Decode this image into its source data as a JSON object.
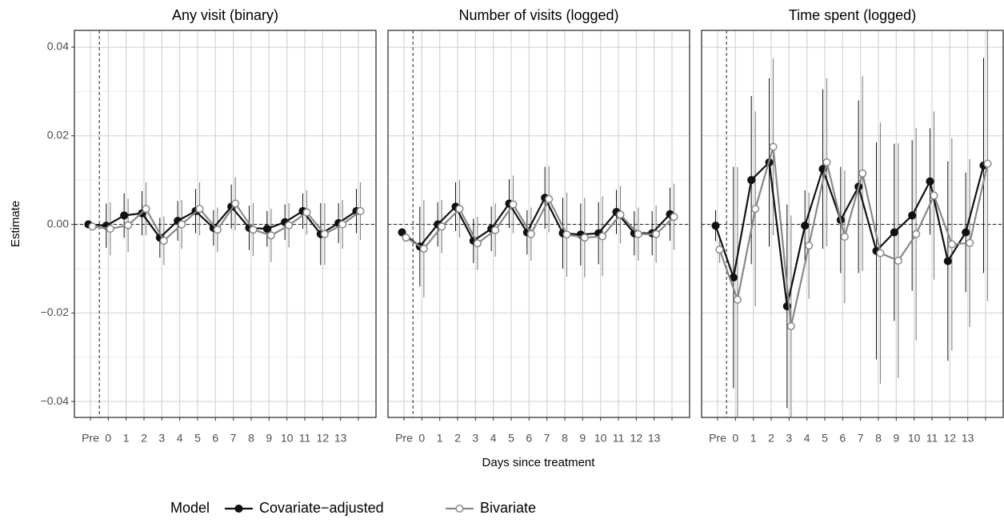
{
  "x_label": "Days since treatment",
  "y_label": "Estimate",
  "legend_title": "Model",
  "chart_data": [
    {
      "type": "line",
      "title": "Any visit (binary)",
      "categories": [
        "Pre",
        "0",
        "1",
        "2",
        "3",
        "4",
        "5",
        "6",
        "7",
        "8",
        "9",
        "10",
        "11",
        "12",
        "13",
        null
      ],
      "ylim": [
        -0.0436,
        0.0438
      ],
      "yticks": [
        {
          "value": -0.04,
          "label": "−0.04"
        },
        {
          "value": -0.02,
          "label": "−0.02"
        },
        {
          "value": 0,
          "label": "0.00"
        },
        0.02,
        0.04
      ],
      "yminor": [
        -0.03,
        -0.01,
        0.01,
        0.03
      ],
      "hline": 0,
      "grid": true,
      "series": [
        {
          "name": "Covariate−adjusted",
          "color": "#111111",
          "values": [
            0,
            -0.0003,
            0.002,
            0.0025,
            -0.003,
            0.0008,
            0.003,
            -0.0008,
            0.004,
            -0.0008,
            -0.001,
            0.0005,
            0.003,
            -0.0022,
            0.0003,
            0.003
          ],
          "errors": [
            0.0005,
            0.005,
            0.005,
            0.005,
            0.0045,
            0.0045,
            0.005,
            0.004,
            0.005,
            0.005,
            0.004,
            0.004,
            0.004,
            0.007,
            0.0045,
            0.005
          ]
        },
        {
          "name": "Bivariate",
          "color": "#888888",
          "values": [
            -0.0005,
            -0.001,
            -0.0002,
            0.0035,
            -0.0037,
            0,
            0.0035,
            -0.0012,
            0.0047,
            -0.0012,
            -0.0025,
            -0.0002,
            0.0027,
            -0.0022,
            0,
            0.003
          ],
          "errors": [
            0.0005,
            0.006,
            0.006,
            0.006,
            0.0055,
            0.0055,
            0.006,
            0.005,
            0.006,
            0.006,
            0.006,
            0.005,
            0.005,
            0.007,
            0.0055,
            0.0065
          ]
        }
      ]
    },
    {
      "type": "line",
      "title": "Number of visits (logged)",
      "categories": [
        "Pre",
        "0",
        "1",
        "2",
        "3",
        "4",
        "5",
        "6",
        "7",
        "8",
        "9",
        "10",
        "11",
        "12",
        "13",
        null
      ],
      "ylim": [
        -0.0436,
        0.0438
      ],
      "yticks": [
        {
          "value": -0.04,
          "label": "−0.04"
        },
        {
          "value": -0.02,
          "label": "−0.02"
        },
        {
          "value": 0,
          "label": "0.00"
        },
        0.02,
        0.04
      ],
      "yminor": [
        -0.03,
        -0.01,
        0.01,
        0.03
      ],
      "hline": 0,
      "grid": true,
      "series": [
        {
          "name": "Covariate−adjusted",
          "color": "#111111",
          "values": [
            -0.0018,
            -0.005,
            0,
            0.004,
            -0.0037,
            -0.001,
            0.0047,
            -0.0018,
            0.006,
            -0.002,
            -0.0023,
            -0.002,
            0.0028,
            -0.002,
            -0.002,
            0.0023
          ],
          "errors": [
            0.0008,
            0.009,
            0.005,
            0.0055,
            0.005,
            0.005,
            0.0055,
            0.005,
            0.007,
            0.008,
            0.007,
            0.007,
            0.005,
            0.005,
            0.005,
            0.006
          ]
        },
        {
          "name": "Bivariate",
          "color": "#888888",
          "values": [
            -0.003,
            -0.0055,
            -0.0005,
            0.0035,
            -0.0043,
            -0.0013,
            0.0045,
            -0.0022,
            0.0057,
            -0.0023,
            -0.003,
            -0.0027,
            0.0022,
            -0.0022,
            -0.0022,
            0.0017
          ],
          "errors": [
            0.0008,
            0.011,
            0.006,
            0.0065,
            0.006,
            0.006,
            0.0065,
            0.006,
            0.0075,
            0.0095,
            0.009,
            0.009,
            0.0065,
            0.006,
            0.0065,
            0.0075
          ]
        }
      ]
    },
    {
      "type": "line",
      "title": "Time spent (logged)",
      "categories": [
        "Pre",
        "0",
        "1",
        "2",
        "3",
        "4",
        "5",
        "6",
        "7",
        "8",
        "9",
        "10",
        "11",
        "12",
        "13",
        null
      ],
      "ylim": [
        -0.0436,
        0.0438
      ],
      "yticks": [
        {
          "value": -0.04,
          "label": "−0.04"
        },
        {
          "value": -0.02,
          "label": "−0.02"
        },
        {
          "value": 0,
          "label": "0.00"
        },
        0.02,
        0.04
      ],
      "yminor": [
        -0.03,
        -0.01,
        0.01,
        0.03
      ],
      "hline": 0,
      "grid": true,
      "series": [
        {
          "name": "Covariate−adjusted",
          "color": "#111111",
          "values": [
            -0.0003,
            -0.012,
            0.01,
            0.014,
            -0.0185,
            -0.0003,
            0.0125,
            0.001,
            0.0085,
            -0.006,
            -0.0018,
            0.002,
            0.0097,
            -0.0083,
            -0.0018,
            0.0133
          ],
          "errors": [
            0.0035,
            0.025,
            0.019,
            0.019,
            0.023,
            0.008,
            0.018,
            0.012,
            0.0195,
            0.0245,
            0.02,
            0.017,
            0.012,
            0.0225,
            0.0135,
            0.0243
          ]
        },
        {
          "name": "Bivariate",
          "color": "#888888",
          "values": [
            -0.0057,
            -0.017,
            0.0035,
            0.0175,
            -0.023,
            -0.0048,
            0.014,
            -0.0028,
            0.0115,
            -0.0065,
            -0.0082,
            -0.0022,
            0.0065,
            -0.0045,
            -0.0042,
            0.0137
          ],
          "errors": [
            0.003,
            0.03,
            0.022,
            0.02,
            0.025,
            0.012,
            0.019,
            0.015,
            0.022,
            0.0295,
            0.0265,
            0.024,
            0.019,
            0.024,
            0.019,
            0.031
          ]
        }
      ]
    }
  ]
}
